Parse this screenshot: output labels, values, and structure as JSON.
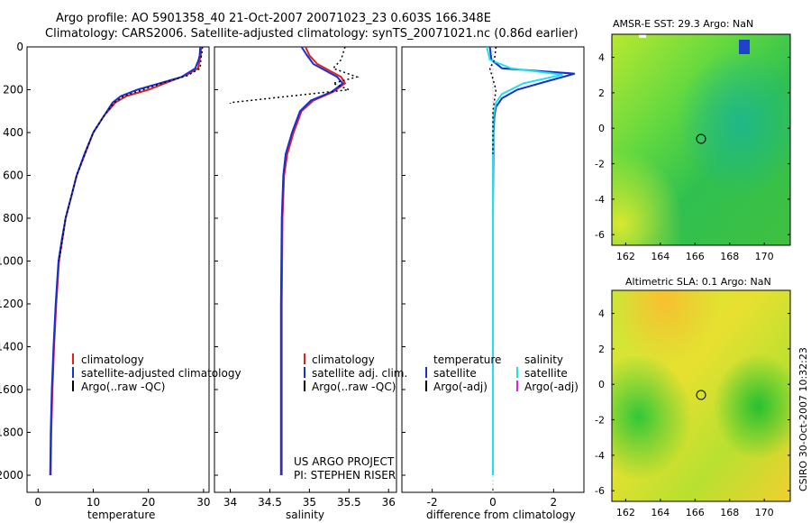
{
  "header": {
    "title_line1": "Argo profile: AO 5901358_40 21-Oct-2007 20071023_23 0.603S 166.348E",
    "title_line2": "Climatology: CARS2006. Satellite-adjusted climatology: synTS_20071021.nc (0.86d earlier)"
  },
  "side_text": "CSIRO 30-Oct-2007 10:32:23",
  "project": {
    "line1": "US ARGO PROJECT",
    "line2": "PI: STEPHEN RISER"
  },
  "colors": {
    "clim": "#e0201a",
    "sat": "#1530d8",
    "argo": "#000000",
    "sat_diff": "#20e0e8",
    "argo_adj": "#e020e0"
  },
  "chart_data": [
    {
      "type": "line",
      "name": "temperature-profile",
      "xlabel": "temperature",
      "ylabel": "",
      "xlim": [
        -2,
        31
      ],
      "ylim": [
        2080,
        0
      ],
      "xticks": [
        0,
        10,
        20,
        30
      ],
      "yticks": [
        0,
        200,
        400,
        600,
        800,
        1000,
        1200,
        1400,
        1600,
        1800,
        2000
      ],
      "legend": [
        "climatology",
        "satellite-adjusted climatology",
        "Argo(..raw -QC)"
      ],
      "series": [
        {
          "name": "climatology",
          "x": [
            29.6,
            29.5,
            29.3,
            29,
            27,
            24,
            20,
            16,
            14,
            12,
            10,
            8.5,
            7,
            6,
            5,
            4.4,
            3.8,
            3.3,
            2.9,
            2.6,
            2.4,
            2.3
          ],
          "y": [
            0,
            40,
            60,
            100,
            130,
            160,
            200,
            230,
            260,
            320,
            400,
            500,
            600,
            700,
            800,
            900,
            1000,
            1200,
            1400,
            1600,
            1800,
            2000
          ]
        },
        {
          "name": "satellite-adjusted",
          "x": [
            29.4,
            29.3,
            29.1,
            28.5,
            26,
            22,
            18,
            15,
            13.5,
            12,
            10,
            8.4,
            7,
            6,
            5,
            4.3,
            3.7,
            3.2,
            2.8,
            2.5,
            2.3,
            2.2
          ],
          "y": [
            0,
            40,
            60,
            100,
            140,
            170,
            200,
            230,
            260,
            320,
            400,
            500,
            600,
            700,
            800,
            900,
            1000,
            1200,
            1400,
            1600,
            1800,
            2000
          ]
        },
        {
          "name": "argo",
          "x": [
            29.8,
            29.7,
            29.5,
            29.4,
            27,
            23,
            19,
            15.5,
            13.8,
            12,
            10,
            8.5,
            7,
            6,
            5,
            4.4,
            3.8
          ],
          "y": [
            0,
            30,
            60,
            100,
            135,
            165,
            200,
            230,
            260,
            320,
            400,
            500,
            600,
            700,
            800,
            900,
            1000
          ]
        }
      ]
    },
    {
      "type": "line",
      "name": "salinity-profile",
      "xlabel": "salinity",
      "ylabel": "",
      "xlim": [
        33.8,
        36.1
      ],
      "ylim": [
        2080,
        0
      ],
      "xticks": [
        34,
        34.5,
        35,
        35.5,
        36
      ],
      "legend": [
        "climatology",
        "satellite adj. clim.",
        "Argo(..raw -QC)"
      ],
      "series": [
        {
          "name": "climatology",
          "x": [
            34.95,
            35.0,
            35.1,
            35.25,
            35.4,
            35.45,
            35.3,
            35.05,
            34.9,
            34.8,
            34.72,
            34.68,
            34.66,
            34.65,
            34.65
          ],
          "y": [
            0,
            40,
            80,
            110,
            140,
            170,
            210,
            250,
            300,
            400,
            500,
            600,
            800,
            1200,
            2000
          ]
        },
        {
          "name": "satellite-adjusted",
          "x": [
            34.9,
            34.97,
            35.05,
            35.2,
            35.35,
            35.42,
            35.28,
            35.02,
            34.88,
            34.78,
            34.7,
            34.67,
            34.65,
            34.64,
            34.64
          ],
          "y": [
            0,
            40,
            80,
            110,
            140,
            170,
            210,
            250,
            300,
            400,
            500,
            600,
            800,
            1200,
            2000
          ]
        },
        {
          "name": "argo",
          "x": [
            35.45,
            35.4,
            35.3,
            35.6,
            35.3,
            35.5,
            34.0,
            34.0
          ],
          "y": [
            0,
            60,
            100,
            140,
            170,
            200,
            260,
            265
          ]
        }
      ]
    },
    {
      "type": "line",
      "name": "difference-profile",
      "xlabel": "difference from climatology",
      "ylabel": "",
      "xlim": [
        -3,
        3
      ],
      "ylim": [
        2080,
        0
      ],
      "xticks": [
        -2,
        0,
        2
      ],
      "legend_temperature": [
        "temperature",
        "satellite",
        "Argo(-adj)"
      ],
      "legend_salinity": [
        "salinity",
        "satellite",
        "Argo(-adj)"
      ],
      "series": [
        {
          "name": "temperature satellite",
          "x": [
            -0.1,
            -0.05,
            0.3,
            2.7,
            1.8,
            0.8,
            0.3,
            0.1,
            0.05,
            0.02,
            0.0,
            0.0
          ],
          "y": [
            0,
            60,
            100,
            125,
            160,
            200,
            240,
            280,
            320,
            400,
            800,
            2000
          ]
        },
        {
          "name": "salinity satellite",
          "x": [
            -0.2,
            -0.1,
            0.6,
            2.3,
            1.0,
            0.3,
            0.1,
            0.02,
            0.0,
            0.0
          ],
          "y": [
            0,
            60,
            100,
            130,
            170,
            220,
            260,
            320,
            500,
            2000
          ]
        },
        {
          "name": "argo",
          "x": [
            0.1,
            0.05,
            -0.1,
            0.1,
            0.0,
            0.0
          ],
          "y": [
            0,
            60,
            100,
            200,
            300,
            500
          ]
        }
      ]
    }
  ],
  "maps": [
    {
      "title": "AMSR-E SST: 29.3 Argo: NaN",
      "xticks": [
        162,
        164,
        166,
        168,
        170
      ],
      "yticks": [
        4,
        2,
        0,
        -2,
        -4,
        -6
      ],
      "xlim": [
        161.2,
        171.5
      ],
      "ylim": [
        -6.6,
        5.3
      ],
      "marker": {
        "lon": 166.35,
        "lat": -0.6
      }
    },
    {
      "title": "Altimetric SLA: 0.1 Argo: NaN",
      "xticks": [
        162,
        164,
        166,
        168,
        170
      ],
      "yticks": [
        4,
        2,
        0,
        -2,
        -4,
        -6
      ],
      "xlim": [
        161.2,
        171.5
      ],
      "ylim": [
        -6.6,
        5.3
      ],
      "marker": {
        "lon": 166.35,
        "lat": -0.6
      }
    }
  ]
}
